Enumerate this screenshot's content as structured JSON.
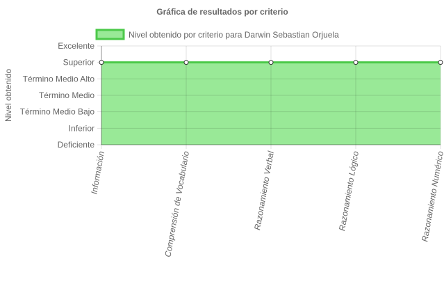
{
  "chart_data": {
    "type": "area",
    "title": "Gráfica de resultados por criterio",
    "ylabel": "Nivel obtenido",
    "xlabel": "",
    "legend_position": "top",
    "grid": true,
    "y_categories": [
      "Deficiente",
      "Inferior",
      "Término Medio Bajo",
      "Término Medio",
      "Término Medio Alto",
      "Superior",
      "Excelente"
    ],
    "categories": [
      "Información",
      "Comprensión de Vocabulario",
      "Razonamiento Verbal",
      "Razonamiento Lógico",
      "Razonamiento Numérico"
    ],
    "series": [
      {
        "name": "Nivel obtenido por criterio para Darwin Sebastian Orjuela",
        "values": [
          "Superior",
          "Superior",
          "Superior",
          "Superior",
          "Superior"
        ],
        "fill_color": "#99e997",
        "line_color": "#4cc94a"
      }
    ]
  }
}
